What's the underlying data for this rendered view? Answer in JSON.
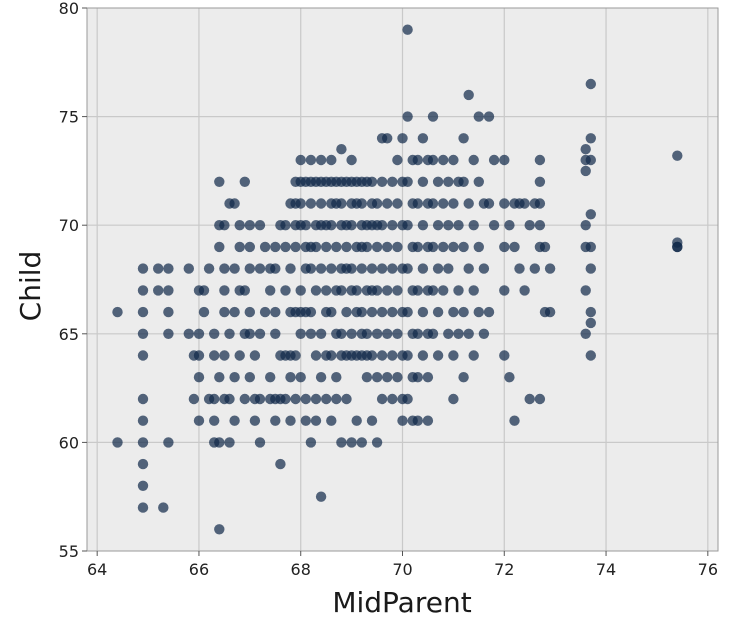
{
  "chart_data": {
    "type": "scatter",
    "title": "",
    "xlabel": "MidParent",
    "ylabel": "Child",
    "xlim": [
      63.8,
      76.2
    ],
    "ylim": [
      55,
      80
    ],
    "xticks": [
      64,
      66,
      68,
      70,
      72,
      74,
      76
    ],
    "yticks": [
      55,
      60,
      65,
      70,
      75,
      80
    ],
    "grid": true,
    "legend": "none",
    "colors": {
      "marker": "#0f2848",
      "plot_bg": "#ececec",
      "grid": "#c9c9c9",
      "frame": "#9a9a9a"
    },
    "marker_opacity": 0.7,
    "series": [
      {
        "x": [
          64.4,
          64.4,
          64.9,
          64.9,
          64.9,
          64.9,
          64.9,
          64.9,
          64.9,
          64.9,
          64.9,
          64.9,
          64.9,
          65.2,
          65.2,
          65.3,
          65.4,
          65.4,
          65.4,
          65.4,
          65.4,
          65.8,
          65.8,
          65.9,
          65.9,
          66.0,
          66.0,
          66.0,
          66.0,
          66.0,
          66.1,
          66.1,
          66.2,
          66.2,
          66.3,
          66.3,
          66.3,
          66.3,
          66.3,
          66.4,
          66.4,
          66.4,
          66.4,
          66.4,
          66.4,
          66.5,
          66.5,
          66.5,
          66.5,
          66.5,
          66.5,
          66.6,
          66.6,
          66.6,
          66.6,
          66.7,
          66.7,
          66.7,
          66.7,
          66.7,
          66.8,
          66.8,
          66.8,
          66.8,
          66.9,
          66.9,
          66.9,
          66.9,
          67.0,
          67.0,
          67.0,
          67.0,
          67.0,
          67.0,
          67.1,
          67.1,
          67.1,
          67.2,
          67.2,
          67.2,
          67.2,
          67.2,
          67.3,
          67.3,
          67.4,
          67.4,
          67.4,
          67.4,
          67.5,
          67.5,
          67.5,
          67.5,
          67.5,
          67.5,
          67.6,
          67.6,
          67.6,
          67.6,
          67.7,
          67.7,
          67.7,
          67.7,
          67.7,
          67.8,
          67.8,
          67.8,
          67.8,
          67.8,
          67.8,
          67.9,
          67.9,
          67.9,
          67.9,
          67.9,
          67.9,
          67.9,
          68.0,
          68.0,
          68.0,
          68.0,
          68.0,
          68.0,
          68.0,
          68.0,
          68.1,
          68.1,
          68.1,
          68.1,
          68.1,
          68.1,
          68.1,
          68.2,
          68.2,
          68.2,
          68.2,
          68.2,
          68.2,
          68.2,
          68.2,
          68.3,
          68.3,
          68.3,
          68.3,
          68.3,
          68.3,
          68.3,
          68.4,
          68.4,
          68.4,
          68.4,
          68.4,
          68.4,
          68.4,
          68.4,
          68.5,
          68.5,
          68.5,
          68.5,
          68.5,
          68.5,
          68.5,
          68.6,
          68.6,
          68.6,
          68.6,
          68.6,
          68.6,
          68.6,
          68.6,
          68.7,
          68.7,
          68.7,
          68.7,
          68.7,
          68.7,
          68.7,
          68.8,
          68.8,
          68.8,
          68.8,
          68.8,
          68.8,
          68.8,
          68.8,
          68.8,
          68.9,
          68.9,
          68.9,
          68.9,
          68.9,
          68.9,
          68.9,
          69.0,
          69.0,
          69.0,
          69.0,
          69.0,
          69.0,
          69.0,
          69.0,
          69.0,
          69.1,
          69.1,
          69.1,
          69.1,
          69.1,
          69.1,
          69.1,
          69.2,
          69.2,
          69.2,
          69.2,
          69.2,
          69.2,
          69.2,
          69.2,
          69.2,
          69.3,
          69.3,
          69.3,
          69.3,
          69.3,
          69.3,
          69.3,
          69.4,
          69.4,
          69.4,
          69.4,
          69.4,
          69.4,
          69.4,
          69.4,
          69.5,
          69.5,
          69.5,
          69.5,
          69.5,
          69.5,
          69.5,
          69.6,
          69.6,
          69.6,
          69.6,
          69.6,
          69.6,
          69.6,
          69.7,
          69.7,
          69.7,
          69.7,
          69.7,
          69.7,
          69.8,
          69.8,
          69.8,
          69.8,
          69.8,
          69.8,
          69.9,
          69.9,
          69.9,
          69.9,
          69.9,
          69.9,
          70.0,
          70.0,
          70.0,
          70.0,
          70.0,
          70.0,
          70.0,
          70.0,
          70.1,
          70.1,
          70.1,
          70.1,
          70.1,
          70.1,
          70.1,
          70.1,
          70.2,
          70.2,
          70.2,
          70.2,
          70.2,
          70.2,
          70.2,
          70.3,
          70.3,
          70.3,
          70.3,
          70.3,
          70.3,
          70.3,
          70.4,
          70.4,
          70.4,
          70.4,
          70.4,
          70.4,
          70.5,
          70.5,
          70.5,
          70.5,
          70.5,
          70.5,
          70.5,
          70.6,
          70.6,
          70.6,
          70.6,
          70.6,
          70.6,
          70.7,
          70.7,
          70.7,
          70.7,
          70.7,
          70.8,
          70.8,
          70.8,
          70.8,
          70.9,
          70.9,
          70.9,
          70.9,
          71.0,
          71.0,
          71.0,
          71.0,
          71.0,
          71.0,
          71.1,
          71.1,
          71.1,
          71.1,
          71.2,
          71.2,
          71.2,
          71.2,
          71.2,
          71.3,
          71.3,
          71.3,
          71.3,
          71.4,
          71.4,
          71.4,
          71.4,
          71.5,
          71.5,
          71.5,
          71.5,
          71.6,
          71.6,
          71.6,
          71.7,
          71.7,
          71.7,
          71.8,
          71.8,
          72.0,
          72.0,
          72.0,
          72.0,
          72.0,
          72.1,
          72.1,
          72.2,
          72.2,
          72.2,
          72.3,
          72.3,
          72.4,
          72.4,
          72.5,
          72.5,
          72.6,
          72.6,
          72.7,
          72.7,
          72.7,
          72.7,
          72.7,
          72.7,
          72.8,
          72.8,
          72.9,
          72.9,
          73.6,
          73.6,
          73.6,
          73.6,
          73.6,
          73.6,
          73.6,
          73.7,
          73.7,
          73.7,
          73.7,
          73.7,
          73.7,
          73.7,
          73.7,
          73.7,
          75.4,
          75.4,
          75.4,
          75.4
        ],
        "y": [
          66,
          60,
          68,
          67,
          66,
          65,
          64,
          62,
          61,
          60,
          58,
          57,
          59,
          67,
          68,
          57,
          68,
          67,
          66,
          65,
          60,
          68,
          65,
          64,
          62,
          65,
          64,
          63,
          61,
          67,
          67,
          66,
          68,
          62,
          62,
          61,
          60,
          64,
          65,
          72,
          70,
          69,
          63,
          60,
          56,
          70,
          68,
          67,
          66,
          64,
          62,
          71,
          65,
          62,
          60,
          71,
          68,
          66,
          63,
          61,
          70,
          69,
          64,
          67,
          72,
          67,
          65,
          62,
          70,
          69,
          68,
          66,
          65,
          63,
          64,
          62,
          61,
          70,
          68,
          65,
          62,
          60,
          69,
          66,
          68,
          67,
          63,
          62,
          69,
          68,
          66,
          65,
          62,
          61,
          70,
          64,
          62,
          59,
          70,
          69,
          67,
          64,
          62,
          71,
          68,
          66,
          64,
          63,
          61,
          72,
          71,
          70,
          69,
          66,
          64,
          62,
          73,
          72,
          71,
          70,
          67,
          66,
          65,
          63,
          72,
          70,
          69,
          68,
          66,
          62,
          61,
          73,
          72,
          71,
          69,
          68,
          66,
          65,
          60,
          72,
          70,
          69,
          67,
          64,
          62,
          61,
          73,
          72,
          71,
          70,
          68,
          65,
          63,
          57.5,
          72,
          70,
          69,
          67,
          66,
          64,
          62,
          73,
          72,
          71,
          70,
          68,
          66,
          64,
          61,
          72,
          71,
          69,
          67,
          65,
          63,
          62,
          73.5,
          72,
          71,
          70,
          68,
          67,
          65,
          64,
          60,
          72,
          70,
          69,
          68,
          66,
          64,
          62,
          73,
          72,
          71,
          70,
          68,
          67,
          65,
          64,
          60,
          72,
          71,
          69,
          67,
          66,
          64,
          61,
          72,
          71,
          70,
          69,
          68,
          66,
          65,
          64,
          60,
          72,
          70,
          69,
          67,
          65,
          64,
          63,
          72,
          71,
          70,
          68,
          67,
          66,
          64,
          61,
          71,
          70,
          69,
          67,
          65,
          63,
          60,
          74,
          72,
          70,
          68,
          66,
          64,
          62,
          74,
          71,
          69,
          67,
          65,
          63,
          72,
          70,
          68,
          66,
          64,
          62,
          73,
          71,
          69,
          67,
          65,
          63,
          74,
          72,
          70,
          68,
          66,
          64,
          62,
          61,
          79,
          75,
          72,
          70,
          68,
          66,
          64,
          62,
          73,
          71,
          69,
          67,
          65,
          63,
          61,
          73,
          71,
          69,
          67,
          65,
          63,
          61,
          74,
          72,
          70,
          68,
          66,
          64,
          73,
          71,
          69,
          67,
          65,
          63,
          61,
          75,
          73,
          71,
          69,
          67,
          65,
          72,
          70,
          68,
          66,
          64,
          73,
          71,
          69,
          67,
          72,
          70,
          68,
          65,
          73,
          71,
          69,
          66,
          64,
          62,
          72,
          70,
          67,
          65,
          74,
          72,
          69,
          66,
          63,
          76,
          71,
          68,
          65,
          73,
          70,
          67,
          64,
          75,
          72,
          69,
          66,
          71,
          68,
          65,
          75,
          71,
          66,
          73,
          70,
          73,
          71,
          69,
          67,
          64,
          70,
          63,
          71,
          69,
          61,
          71,
          68,
          71,
          67,
          70,
          62,
          71,
          68,
          73,
          72,
          71,
          70,
          69,
          62,
          66,
          69,
          66,
          68,
          73.5,
          73,
          72.5,
          70,
          69,
          67,
          65,
          76.5,
          74,
          73,
          70.5,
          69,
          68,
          66,
          65.5,
          64,
          73.2,
          69.2,
          69,
          69
        ]
      }
    ]
  }
}
